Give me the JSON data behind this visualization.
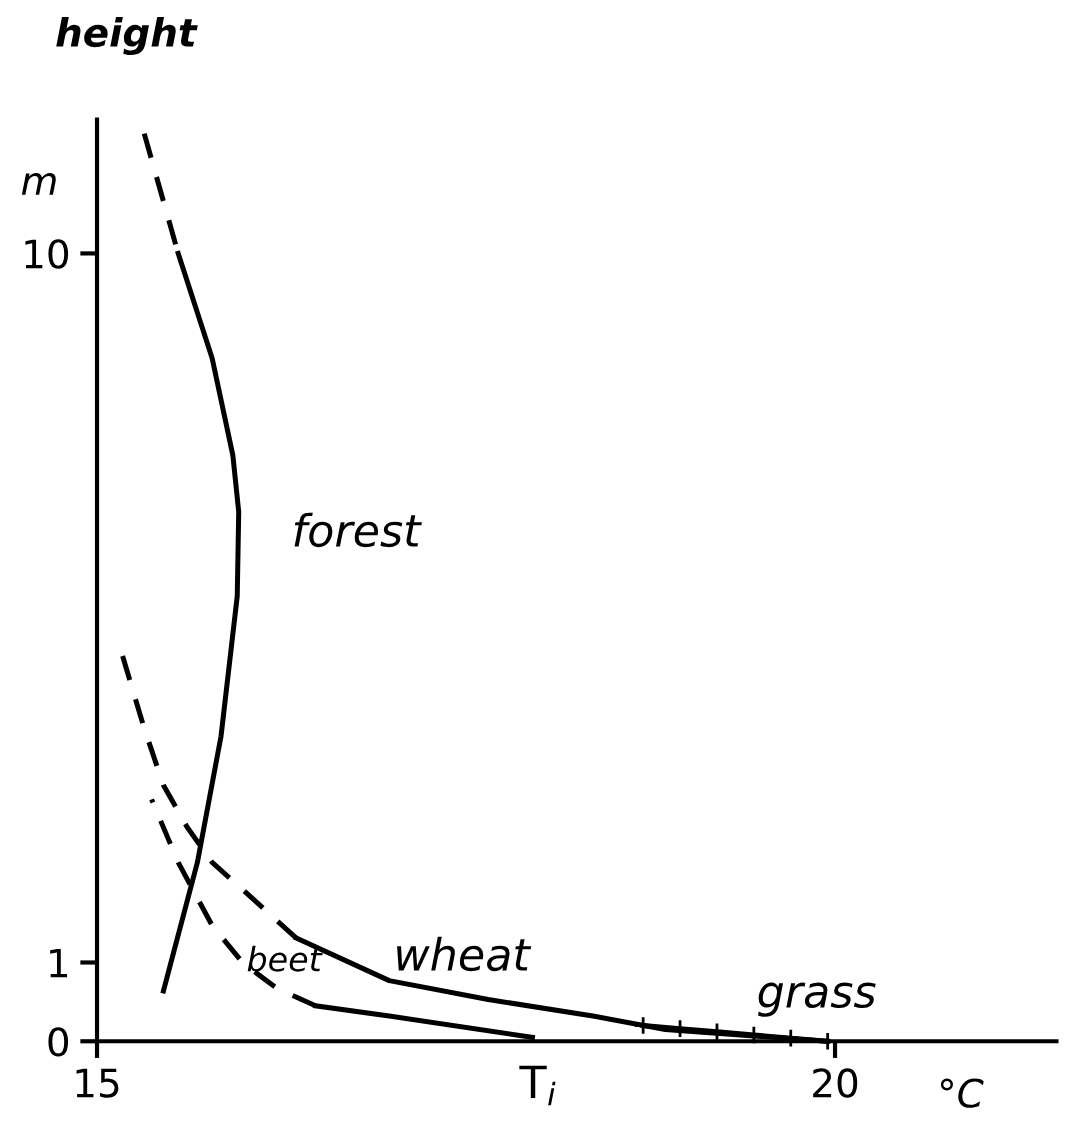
{
  "chart_data": {
    "type": "line",
    "ylabel": "height",
    "xlabel": "T$_{i}$",
    "xlim": [
      15,
      21.5
    ],
    "ylim": [
      0,
      11.7
    ],
    "xticks": [
      15,
      20
    ],
    "yticks": [
      0,
      1,
      10
    ],
    "grid": false,
    "series": [
      {
        "color": "#000000",
        "line_style": "solid",
        "x": [
          15.45,
          15.68,
          15.84,
          15.95,
          15.96,
          15.92,
          15.78,
          15.55
        ],
        "values": [
          0.64,
          2.27,
          3.87,
          5.65,
          6.72,
          7.44,
          8.67,
          10.0
        ]
      },
      {
        "color": "#000000",
        "line_style": "dashed",
        "x": [
          15.55,
          15.32
        ],
        "values": [
          10.0,
          11.52
        ]
      },
      {
        "color": "#000000",
        "line_style": "dashed",
        "x": [
          15.17,
          15.32,
          15.45,
          15.61,
          15.78,
          15.99,
          16.35
        ],
        "values": [
          4.91,
          3.97,
          3.25,
          2.72,
          2.27,
          1.92,
          1.31
        ]
      },
      {
        "color": "#000000",
        "line_style": "solid",
        "x": [
          16.35,
          16.98,
          17.65,
          18.36,
          18.85,
          19.95
        ],
        "values": [
          1.31,
          0.77,
          0.53,
          0.32,
          0.15,
          0.0
        ]
      },
      {
        "color": "#000000",
        "line_style": "dashed",
        "x": [
          15.37,
          15.55,
          15.78,
          15.99,
          16.22,
          16.48
        ],
        "values": [
          3.07,
          2.27,
          1.47,
          0.99,
          0.67,
          0.45
        ]
      },
      {
        "color": "#000000",
        "line_style": "solid",
        "x": [
          16.48,
          16.98,
          17.95
        ],
        "values": [
          0.45,
          0.32,
          0.05
        ]
      },
      {
        "color": "#000000",
        "line_style": "solid",
        "marker": "cross",
        "x": [
          18.7,
          18.95,
          19.2,
          19.45,
          19.7,
          19.95
        ],
        "values": [
          0.2,
          0.16,
          0.12,
          0.08,
          0.04,
          0.0
        ]
      }
    ],
    "annotations": [
      "m",
      "°C",
      "forest",
      "wheat",
      "beet",
      "grass"
    ]
  }
}
